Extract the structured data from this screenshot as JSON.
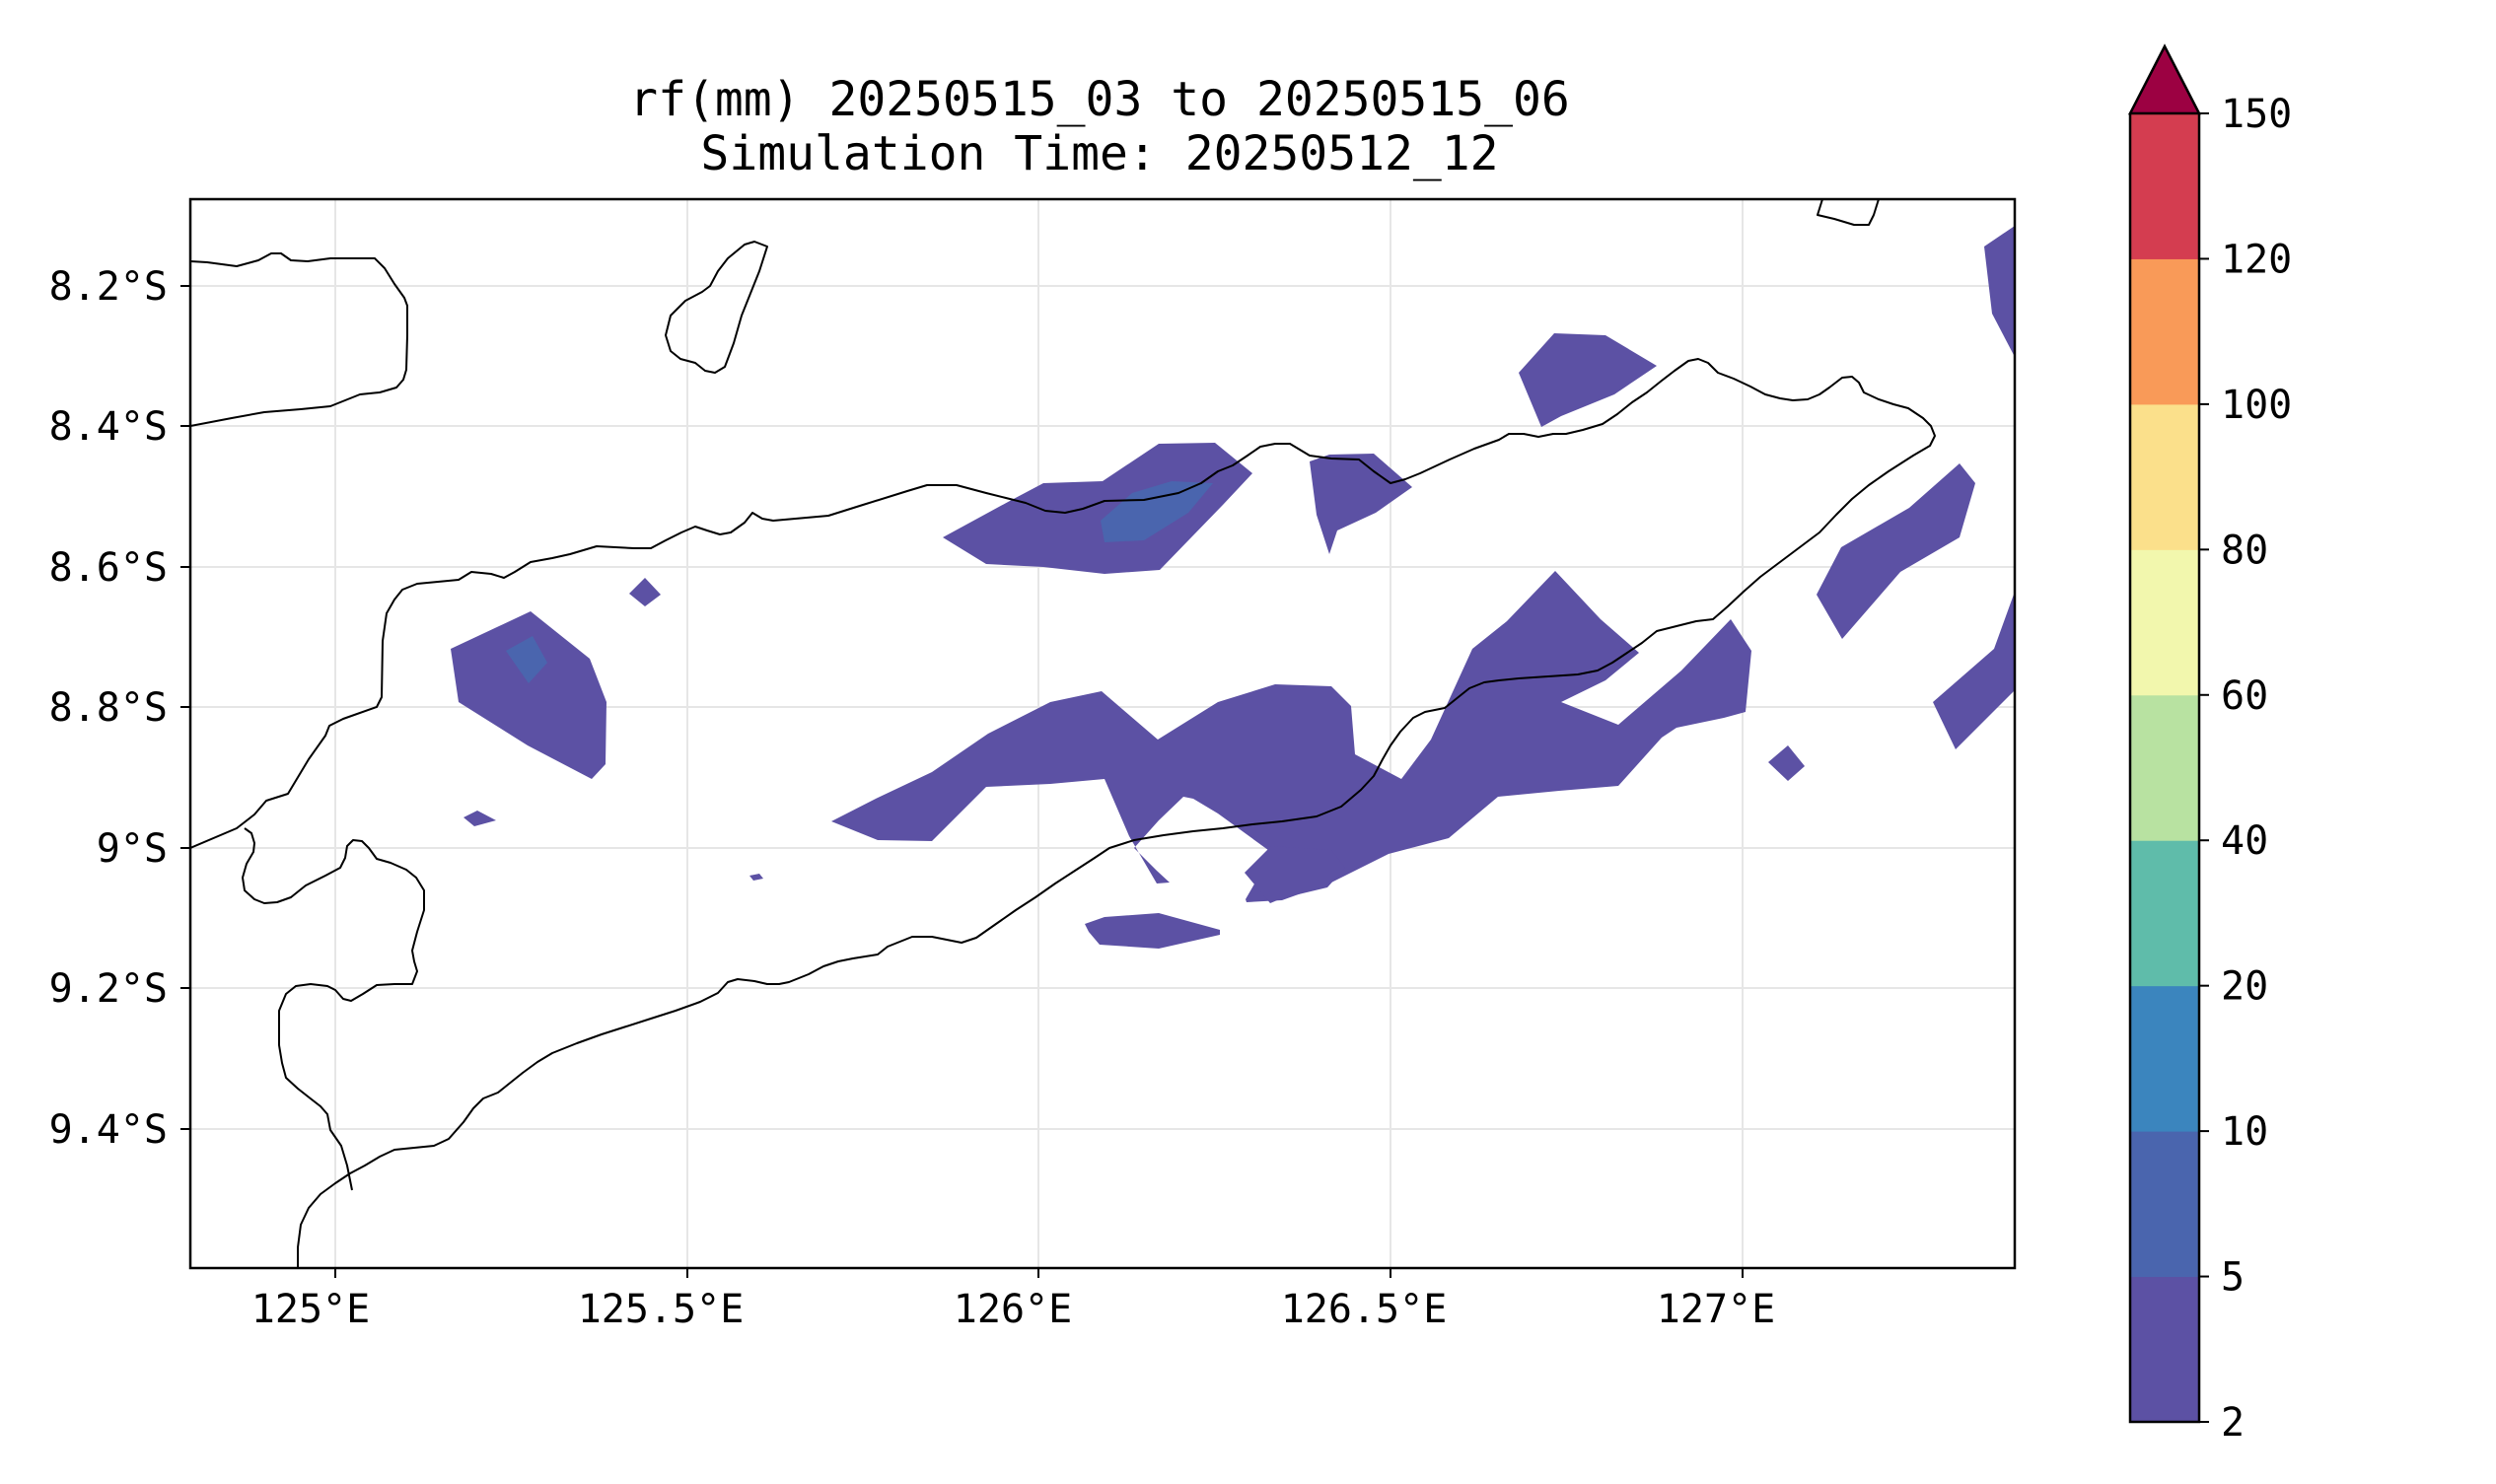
{
  "title": {
    "line1": "rf(mm) 20250515_03 to 20250515_06",
    "line2": "Simulation Time: 20250512_12"
  },
  "map": {
    "extent": {
      "lon_min": 124.83,
      "lon_max": 127.42,
      "lat_min": -9.6,
      "lat_max": -8.08
    },
    "x_ticks": [
      {
        "value": 125.0,
        "label": "125°E"
      },
      {
        "value": 125.5,
        "label": "125.5°E"
      },
      {
        "value": 126.0,
        "label": "126°E"
      },
      {
        "value": 126.5,
        "label": "126.5°E"
      },
      {
        "value": 127.0,
        "label": "127°E"
      }
    ],
    "y_ticks": [
      {
        "value": -8.2,
        "label": "8.2°S"
      },
      {
        "value": -8.4,
        "label": "8.4°S"
      },
      {
        "value": -8.6,
        "label": "8.6°S"
      },
      {
        "value": -8.8,
        "label": "8.8°S"
      },
      {
        "value": -9.0,
        "label": "9°S"
      },
      {
        "value": -9.2,
        "label": "9.2°S"
      },
      {
        "value": -9.4,
        "label": "9.4°S"
      }
    ],
    "gridlines": true
  },
  "colorbar": {
    "levels": [
      {
        "from": 2,
        "to": 5,
        "color": "#5c51a4"
      },
      {
        "from": 5,
        "to": 10,
        "color": "#4a65ae"
      },
      {
        "from": 10,
        "to": 20,
        "color": "#3b85be"
      },
      {
        "from": 20,
        "to": 40,
        "color": "#5fbcaa"
      },
      {
        "from": 40,
        "to": 60,
        "color": "#b8e2a1"
      },
      {
        "from": 60,
        "to": 80,
        "color": "#f2f7ad"
      },
      {
        "from": 80,
        "to": 100,
        "color": "#fbe08b"
      },
      {
        "from": 100,
        "to": 120,
        "color": "#f99a58"
      },
      {
        "from": 120,
        "to": 150,
        "color": "#d43d50"
      }
    ],
    "extend_color": "#9c0142",
    "tick_labels": [
      "2",
      "5",
      "10",
      "20",
      "40",
      "60",
      "80",
      "100",
      "120",
      "150"
    ]
  },
  "colors": {
    "rain_2_5": "#5c51a4",
    "rain_5_10": "#4a65ae",
    "coastline": "#000000"
  }
}
